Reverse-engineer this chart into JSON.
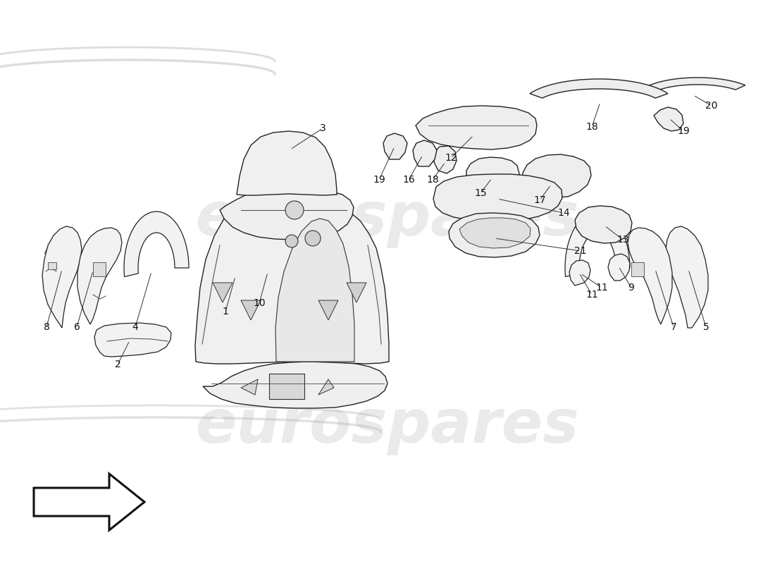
{
  "bg_color": "#ffffff",
  "watermark_text": "eurospares",
  "watermark_color": "#c8c8c8",
  "watermark_alpha": 0.38,
  "part_face_color": "#f2f2f2",
  "part_edge_color": "#222222",
  "part_lw": 0.9,
  "label_fs": 10,
  "fig_width": 11.0,
  "fig_height": 8.0,
  "dpi": 100,
  "xlim": [
    0,
    1100
  ],
  "ylim": [
    0,
    800
  ]
}
